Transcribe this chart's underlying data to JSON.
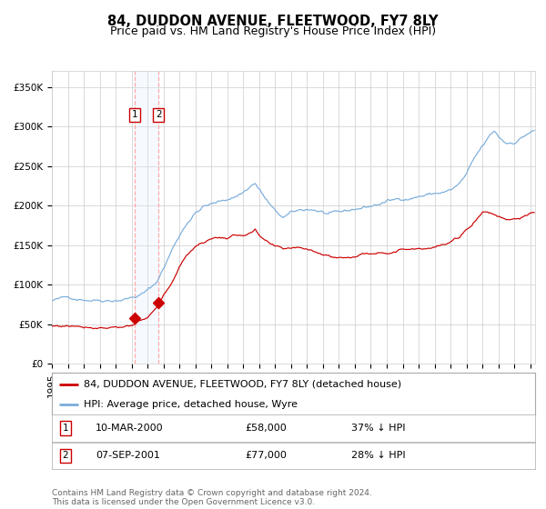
{
  "title": "84, DUDDON AVENUE, FLEETWOOD, FY7 8LY",
  "subtitle": "Price paid vs. HM Land Registry's House Price Index (HPI)",
  "legend_red": "84, DUDDON AVENUE, FLEETWOOD, FY7 8LY (detached house)",
  "legend_blue": "HPI: Average price, detached house, Wyre",
  "transaction1_date": "10-MAR-2000",
  "transaction1_price": 58000,
  "transaction1_note": "37% ↓ HPI",
  "transaction1_year": 2000.19,
  "transaction2_date": "07-SEP-2001",
  "transaction2_price": 77000,
  "transaction2_note": "28% ↓ HPI",
  "transaction2_year": 2001.68,
  "ylabel_ticks": [
    "£0",
    "£50K",
    "£100K",
    "£150K",
    "£200K",
    "£250K",
    "£300K",
    "£350K"
  ],
  "ytick_values": [
    0,
    50000,
    100000,
    150000,
    200000,
    250000,
    300000,
    350000
  ],
  "ylim": [
    0,
    370000
  ],
  "xlim_start": 1995.0,
  "xlim_end": 2025.3,
  "background_color": "#ffffff",
  "grid_color": "#cccccc",
  "red_color": "#cc0000",
  "blue_color": "#7aaddc",
  "shade_color": "#ddeeff",
  "annotation_box_color": "#cc0000",
  "footer_text": "Contains HM Land Registry data © Crown copyright and database right 2024.\nThis data is licensed under the Open Government Licence v3.0.",
  "title_fontsize": 10.5,
  "subtitle_fontsize": 9,
  "tick_fontsize": 7.5,
  "legend_fontsize": 8,
  "footer_fontsize": 6.5
}
